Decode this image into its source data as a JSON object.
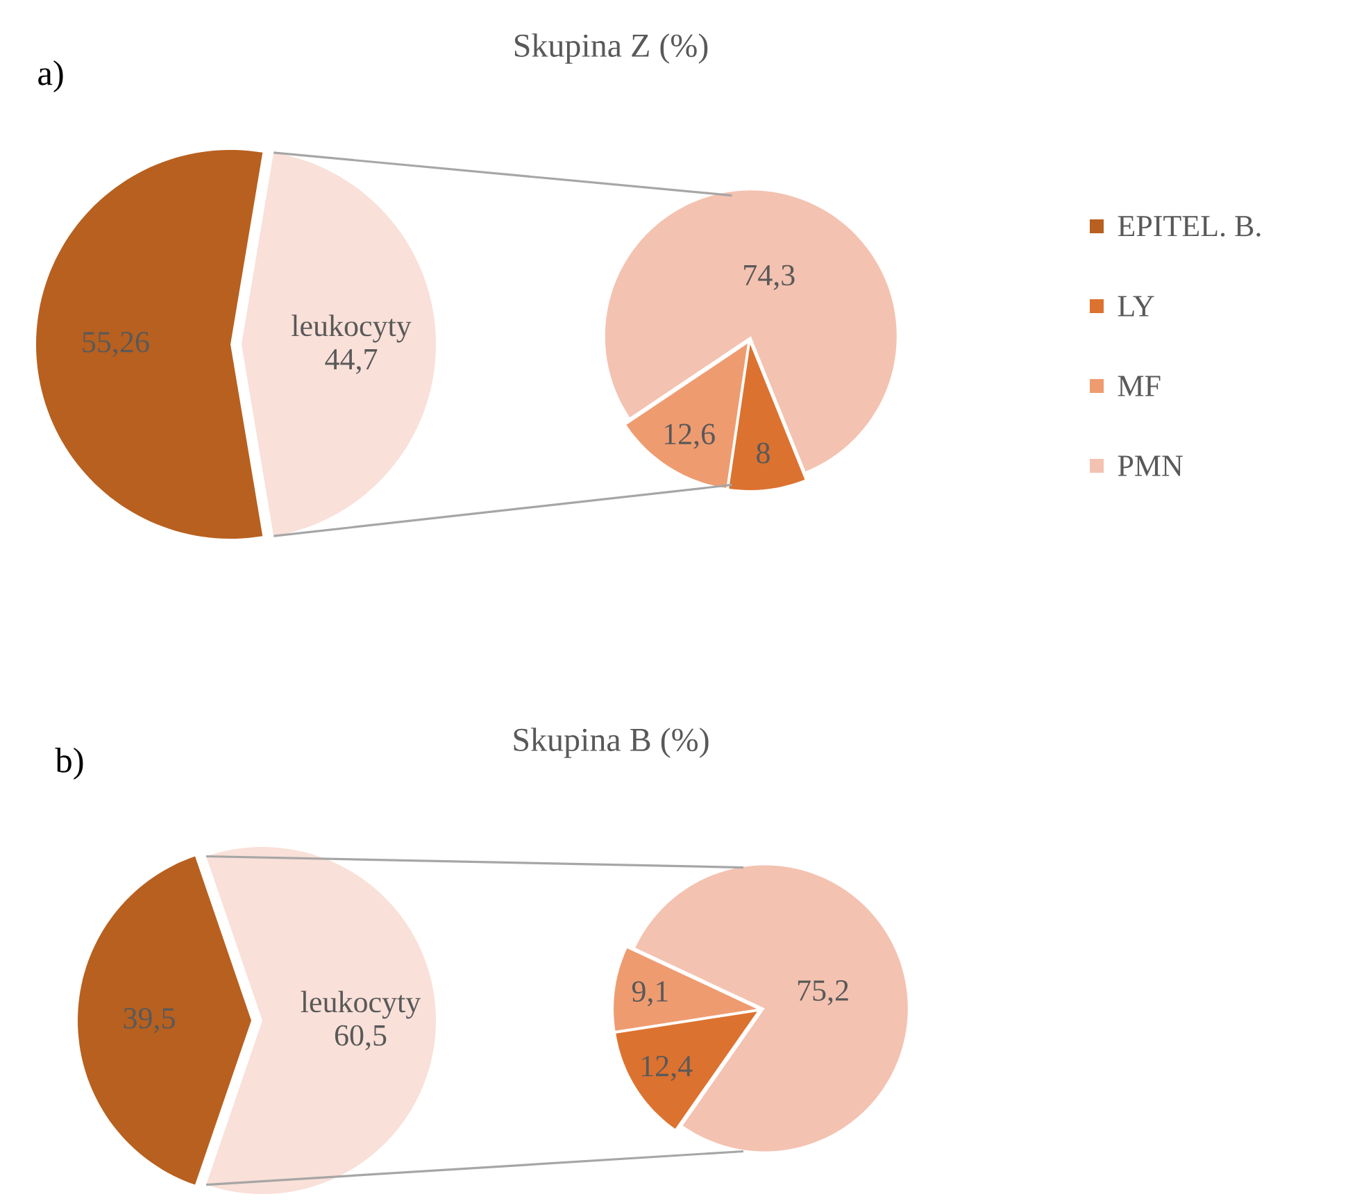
{
  "chart_data": [
    {
      "type": "pie",
      "title": "Skupina Z (%)",
      "annotations": [
        "a)"
      ],
      "categories": [
        "EPITEL. B.",
        "leukocyty"
      ],
      "values": [
        55.26,
        44.7
      ],
      "colors": [
        "#b8601f",
        "#f9e0d8"
      ],
      "value_labels": [
        "55,26",
        "44,7"
      ],
      "legend": "right"
    },
    {
      "type": "pie",
      "categories": [
        "LY",
        "MF",
        "PMN"
      ],
      "values": [
        8,
        12.6,
        74.3
      ],
      "colors": [
        "#dc7230",
        "#ef9b70",
        "#f4c2b1"
      ],
      "value_labels": [
        "8",
        "12,6",
        "74,3"
      ],
      "legend": "right"
    },
    {
      "type": "pie",
      "title": "Skupina B (%)",
      "annotations": [
        "b)"
      ],
      "categories": [
        null,
        "leukocyty"
      ],
      "values": [
        39.5,
        60.5
      ],
      "colors": [
        "#b8601f",
        "#f9e0d8"
      ],
      "value_labels": [
        "39,5",
        "60,5"
      ]
    },
    {
      "type": "pie",
      "categories": [
        null,
        null,
        null
      ],
      "values": [
        12.4,
        9.1,
        75.2
      ],
      "colors": [
        "#dc7230",
        "#ef9b70",
        "#f4c2b1"
      ],
      "value_labels": [
        "12,4",
        "9,1",
        "75,2"
      ]
    }
  ]
}
